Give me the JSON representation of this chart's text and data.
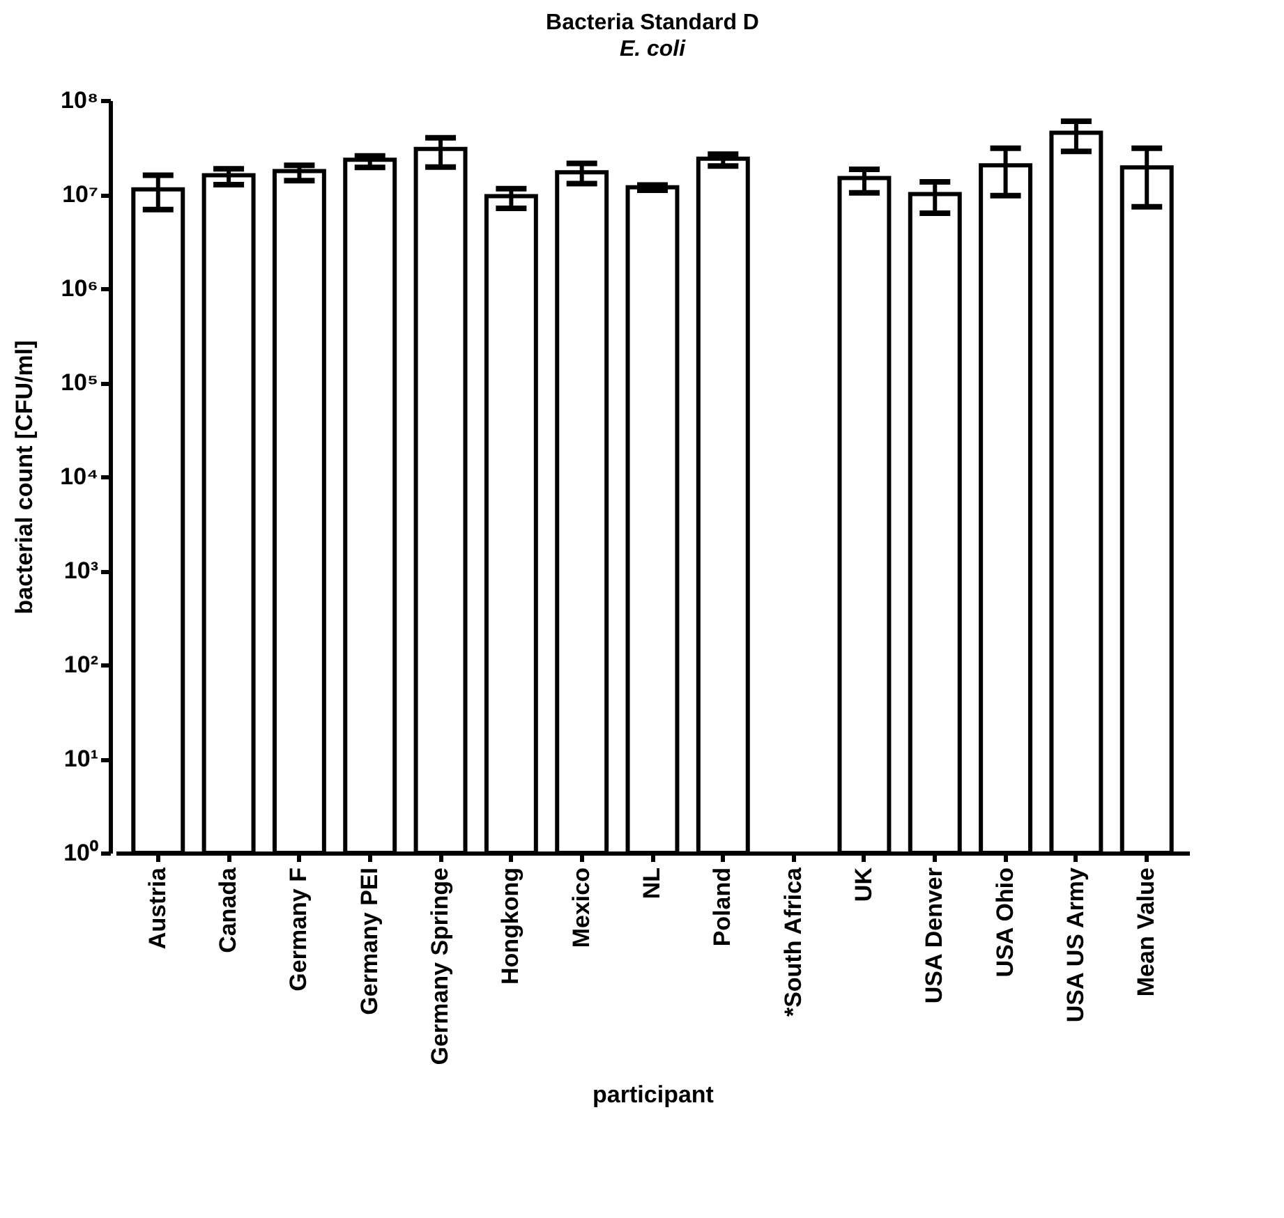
{
  "chart_data": {
    "type": "bar",
    "title": "Bacteria Standard D",
    "subtitle": "E. coli",
    "xlabel": "participant",
    "ylabel": "bacterial count [CFU/ml]",
    "categories": [
      "Austria",
      "Canada",
      "Germany F",
      "Germany PEI",
      "Germany Springe",
      "Hongkong",
      "Mexico",
      "NL",
      "Poland",
      "*South Africa",
      "UK",
      "USA Denver",
      "USA Ohio",
      "USA US Army",
      "Mean Value"
    ],
    "values": [
      11300000,
      16000000,
      17700000,
      23400000,
      30400000,
      9600000,
      17200000,
      11900000,
      24000000,
      null,
      14900000,
      10100000,
      20400000,
      45300000,
      19400000
    ],
    "errors": [
      [
        6900000,
        16000000
      ],
      [
        12700000,
        18700000
      ],
      [
        14000000,
        20400000
      ],
      [
        19400000,
        25700000
      ],
      [
        19500000,
        40000000
      ],
      [
        7100000,
        11500000
      ],
      [
        13000000,
        21400000
      ],
      [
        11100000,
        12600000
      ],
      [
        20000000,
        26800000
      ],
      null,
      [
        10400000,
        18500000
      ],
      [
        6300000,
        13600000
      ],
      [
        9700000,
        31000000
      ],
      [
        28700000,
        60000000
      ],
      [
        7400000,
        31000000
      ]
    ],
    "color": "#ffffff",
    "log": "y",
    "ylim": [
      1,
      100000000
    ],
    "yticks": [
      {
        "value": 1,
        "label": "10⁰"
      },
      {
        "value": 10,
        "label": "10¹"
      },
      {
        "value": 100,
        "label": "10²"
      },
      {
        "value": 1000,
        "label": "10³"
      },
      {
        "value": 10000,
        "label": "10⁴"
      },
      {
        "value": 100000,
        "label": "10⁵"
      },
      {
        "value": 1000000,
        "label": "10⁶"
      },
      {
        "value": 10000000,
        "label": "10⁷"
      },
      {
        "value": 100000000,
        "label": "10⁸"
      }
    ],
    "grid": false
  }
}
